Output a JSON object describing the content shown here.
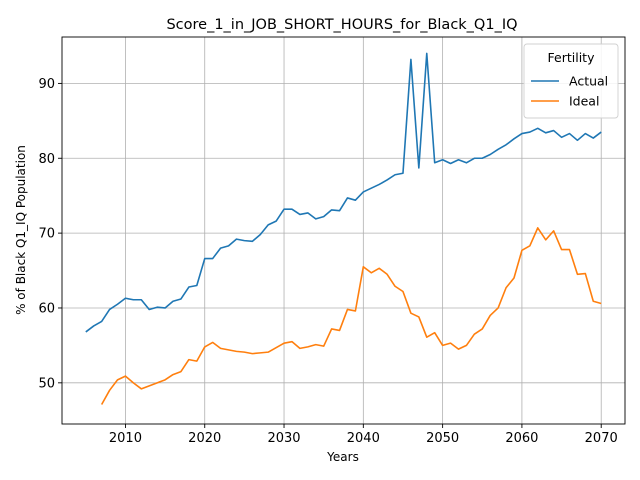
{
  "chart_data": {
    "type": "line",
    "title": "Score_1_in_JOB_SHORT_HOURS_for_Black_Q1_IQ",
    "xlabel": "Years",
    "ylabel": "% of Black Q1_IQ Population",
    "xlim": [
      2002,
      2073
    ],
    "ylim": [
      44.5,
      96.2
    ],
    "xticks": [
      2010,
      2020,
      2030,
      2040,
      2050,
      2060,
      2070
    ],
    "yticks": [
      50,
      60,
      70,
      80,
      90
    ],
    "grid": true,
    "legend": {
      "title": "Fertility",
      "placement": "top-right"
    },
    "series": [
      {
        "name": "Actual",
        "color": "#1f77b4",
        "x": [
          2005,
          2006,
          2007,
          2008,
          2009,
          2010,
          2011,
          2012,
          2013,
          2014,
          2015,
          2016,
          2017,
          2018,
          2019,
          2020,
          2021,
          2022,
          2023,
          2024,
          2025,
          2026,
          2027,
          2028,
          2029,
          2030,
          2031,
          2032,
          2033,
          2034,
          2035,
          2036,
          2037,
          2038,
          2039,
          2040,
          2041,
          2042,
          2043,
          2044,
          2045,
          2046,
          2047,
          2048,
          2049,
          2050,
          2051,
          2052,
          2053,
          2054,
          2055,
          2056,
          2057,
          2058,
          2059,
          2060,
          2061,
          2062,
          2063,
          2064,
          2065,
          2066,
          2067,
          2068,
          2069,
          2070
        ],
        "y": [
          56.8,
          57.6,
          58.2,
          59.8,
          60.5,
          61.3,
          61.1,
          61.1,
          59.8,
          60.1,
          60.0,
          60.9,
          61.2,
          62.8,
          63.0,
          66.6,
          66.6,
          68.0,
          68.3,
          69.2,
          69.0,
          68.9,
          69.8,
          71.1,
          71.6,
          73.2,
          73.2,
          72.5,
          72.7,
          71.9,
          72.2,
          73.1,
          73.0,
          74.7,
          74.4,
          75.5,
          76.0,
          76.5,
          77.1,
          77.8,
          78.0,
          93.2,
          78.7,
          94.0,
          79.4,
          79.8,
          79.3,
          79.8,
          79.4,
          80.0,
          80.0,
          80.5,
          81.2,
          81.8,
          82.6,
          83.3,
          83.5,
          84.0,
          83.4,
          83.7,
          82.8,
          83.3,
          82.4,
          83.3,
          82.7,
          83.5
        ]
      },
      {
        "name": "Ideal",
        "color": "#ff7f0e",
        "x": [
          2007,
          2008,
          2009,
          2010,
          2011,
          2012,
          2013,
          2014,
          2015,
          2016,
          2017,
          2018,
          2019,
          2020,
          2021,
          2022,
          2023,
          2024,
          2025,
          2026,
          2027,
          2028,
          2029,
          2030,
          2031,
          2032,
          2033,
          2034,
          2035,
          2036,
          2037,
          2038,
          2039,
          2040,
          2041,
          2042,
          2043,
          2044,
          2045,
          2046,
          2047,
          2048,
          2049,
          2050,
          2051,
          2052,
          2053,
          2054,
          2055,
          2056,
          2057,
          2058,
          2059,
          2060,
          2061,
          2062,
          2063,
          2064,
          2065,
          2066,
          2067,
          2068,
          2069,
          2070
        ],
        "y": [
          47.1,
          49.0,
          50.4,
          50.9,
          50.0,
          49.2,
          49.6,
          50.0,
          50.4,
          51.1,
          51.5,
          53.1,
          52.9,
          54.8,
          55.4,
          54.6,
          54.4,
          54.2,
          54.1,
          53.9,
          54.0,
          54.1,
          54.7,
          55.3,
          55.5,
          54.6,
          54.8,
          55.1,
          54.9,
          57.2,
          57.0,
          59.8,
          59.6,
          65.5,
          64.7,
          65.3,
          64.5,
          62.9,
          62.2,
          59.3,
          58.8,
          56.1,
          56.7,
          55.0,
          55.3,
          54.5,
          55.0,
          56.5,
          57.2,
          59.0,
          60.0,
          62.7,
          64.0,
          67.7,
          68.3,
          70.7,
          69.1,
          70.3,
          67.8,
          67.8,
          64.5,
          64.6,
          60.9,
          60.6
        ]
      }
    ]
  }
}
